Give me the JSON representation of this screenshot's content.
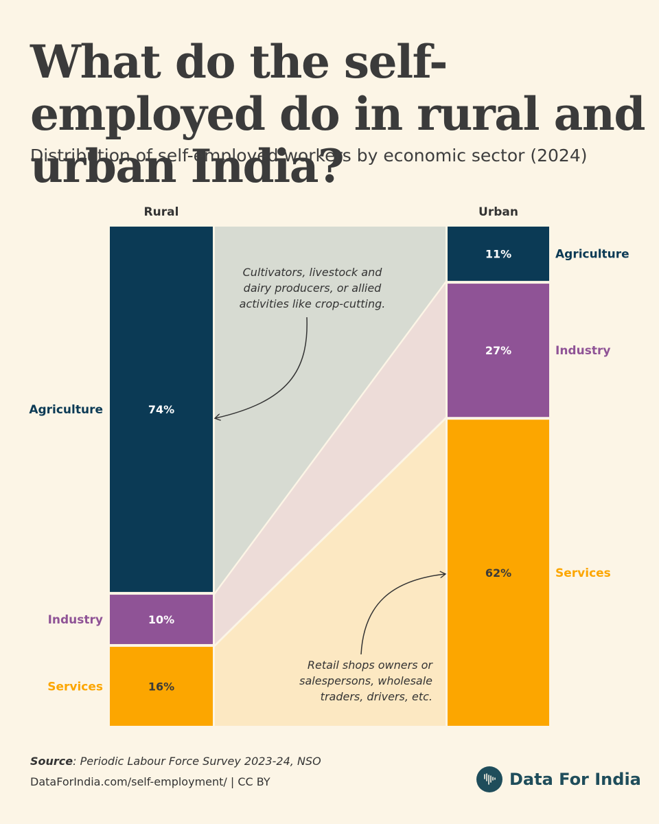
{
  "title": "What do the self-employed do in rural and urban India?",
  "subtitle": "Distribution of self-employed workers by economic sector (2024)",
  "chart_data": {
    "type": "bar",
    "subtype": "stacked-100-percent-with-flows",
    "title": "What do the self-employed do in rural and urban India?",
    "subtitle": "Distribution of self-employed workers by economic sector (2024)",
    "categories": [
      "Rural",
      "Urban"
    ],
    "series": [
      {
        "name": "Agriculture",
        "values": [
          74,
          11
        ],
        "value_labels": [
          "74%",
          "11%"
        ],
        "color": "#0b3a55",
        "flow_color": "#d7dbd2",
        "label_color": "#0b3a55"
      },
      {
        "name": "Industry",
        "values": [
          10,
          27
        ],
        "value_labels": [
          "10%",
          "27%"
        ],
        "color": "#8f5396",
        "flow_color": "#eddcd8",
        "label_color": "#8f5396"
      },
      {
        "name": "Services",
        "values": [
          16,
          62
        ],
        "value_labels": [
          "16%",
          "62%"
        ],
        "color": "#fca600",
        "flow_color": "#fce8c2",
        "label_color": "#fca600"
      }
    ],
    "ylim": [
      0,
      100
    ],
    "annotations": [
      {
        "target": "Rural Agriculture",
        "lines": [
          "Cultivators, livestock and",
          "dairy producers, or allied",
          "activities like crop-cutting."
        ]
      },
      {
        "target": "Urban Services",
        "lines": [
          "Retail shops owners or",
          "salespersons, wholesale",
          "traders, drivers, etc."
        ]
      }
    ]
  },
  "footer": {
    "source_label": "Source",
    "source_text": ": Periodic Labour Force Survey 2023-24, NSO",
    "link": "DataForIndia.com/self-employment/  |  CC BY",
    "brand": "Data For India"
  },
  "colors": {
    "background": "#fcf5e6",
    "brand": "#1f4d5b"
  }
}
